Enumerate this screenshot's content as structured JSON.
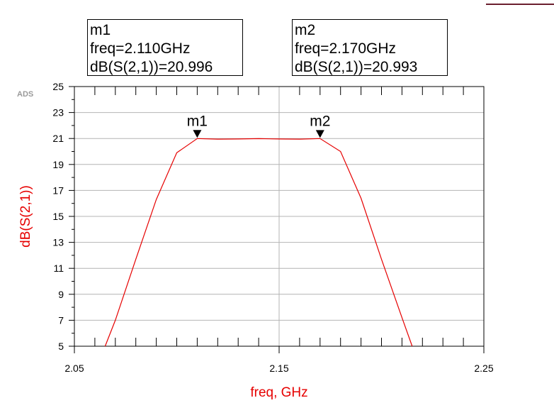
{
  "chart_data": {
    "type": "line",
    "xlabel": "freq, GHz",
    "ylabel": "dB(S(2,1))",
    "xlim": [
      2.05,
      2.25
    ],
    "ylim": [
      5,
      25
    ],
    "x_ticks": [
      "2.05",
      "2.15",
      "2.25"
    ],
    "y_ticks": [
      "5",
      "7",
      "9",
      "11",
      "13",
      "15",
      "17",
      "19",
      "21",
      "23",
      "25"
    ],
    "grid": true,
    "line_color": "#e60000",
    "series": [
      {
        "x": [
          2.065,
          2.07,
          2.08,
          2.09,
          2.1,
          2.11,
          2.12,
          2.13,
          2.14,
          2.15,
          2.16,
          2.17,
          2.18,
          2.19,
          2.2,
          2.21,
          2.215
        ],
        "values": [
          5.0,
          7.0,
          11.7,
          16.3,
          19.9,
          20.996,
          20.95,
          20.96,
          20.99,
          20.96,
          20.95,
          20.993,
          20.0,
          16.4,
          11.7,
          7.2,
          5.0
        ]
      }
    ],
    "markers": [
      {
        "name": "m1",
        "freq": 2.11,
        "value": 20.996,
        "line1": "m1",
        "line2": "freq=2.110GHz",
        "line3": "dB(S(2,1))=20.996"
      },
      {
        "name": "m2",
        "freq": 2.17,
        "value": 20.993,
        "line1": "m2",
        "line2": "freq=2.170GHz",
        "line3": "dB(S(2,1))=20.993"
      }
    ]
  },
  "watermark": "ADS"
}
